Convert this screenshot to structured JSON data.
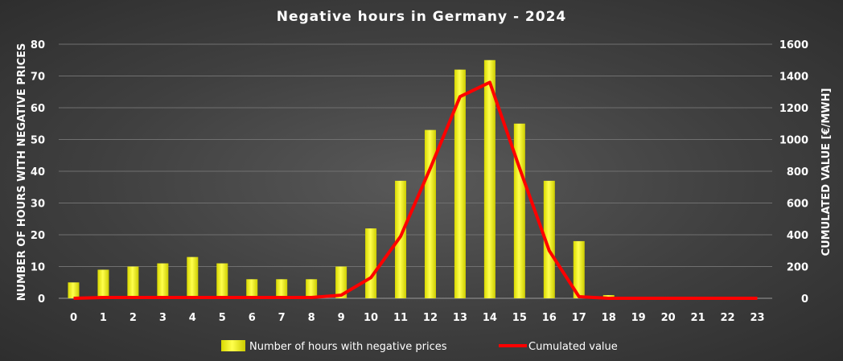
{
  "chart_data": {
    "type": "bar+line",
    "title": "Negative hours in Germany - 2024",
    "ylabel": "NUMBER OF HOURS WITH NEGATIVE PRICES",
    "y2label": "CUMULATED VALUE [€/MWH]",
    "categories": [
      "0",
      "1",
      "2",
      "3",
      "4",
      "5",
      "6",
      "7",
      "8",
      "9",
      "10",
      "11",
      "12",
      "13",
      "14",
      "15",
      "16",
      "17",
      "18",
      "19",
      "20",
      "21",
      "22",
      "23"
    ],
    "ylim": [
      0,
      80
    ],
    "yticks": [
      "0",
      "10",
      "20",
      "30",
      "40",
      "50",
      "60",
      "70",
      "80"
    ],
    "y2lim": [
      0,
      1600
    ],
    "y2ticks": [
      "0",
      "200",
      "400",
      "600",
      "800",
      "1000",
      "1200",
      "1400",
      "1600"
    ],
    "grid": true,
    "legend_position": "bottom",
    "series": [
      {
        "name": "Number of hours with negative prices",
        "kind": "bar",
        "axis": "left",
        "color": "#ffff00",
        "values": [
          5,
          9,
          10,
          11,
          13,
          11,
          6,
          6,
          6,
          10,
          22,
          37,
          53,
          72,
          75,
          55,
          37,
          18,
          1,
          0,
          0,
          0,
          0,
          0
        ]
      },
      {
        "name": "Cumulated value",
        "kind": "line",
        "axis": "right",
        "color": "#ff0000",
        "values": [
          0,
          5,
          5,
          5,
          5,
          5,
          5,
          5,
          5,
          20,
          130,
          390,
          820,
          1270,
          1360,
          820,
          300,
          10,
          0,
          0,
          0,
          0,
          0,
          0
        ]
      }
    ]
  }
}
